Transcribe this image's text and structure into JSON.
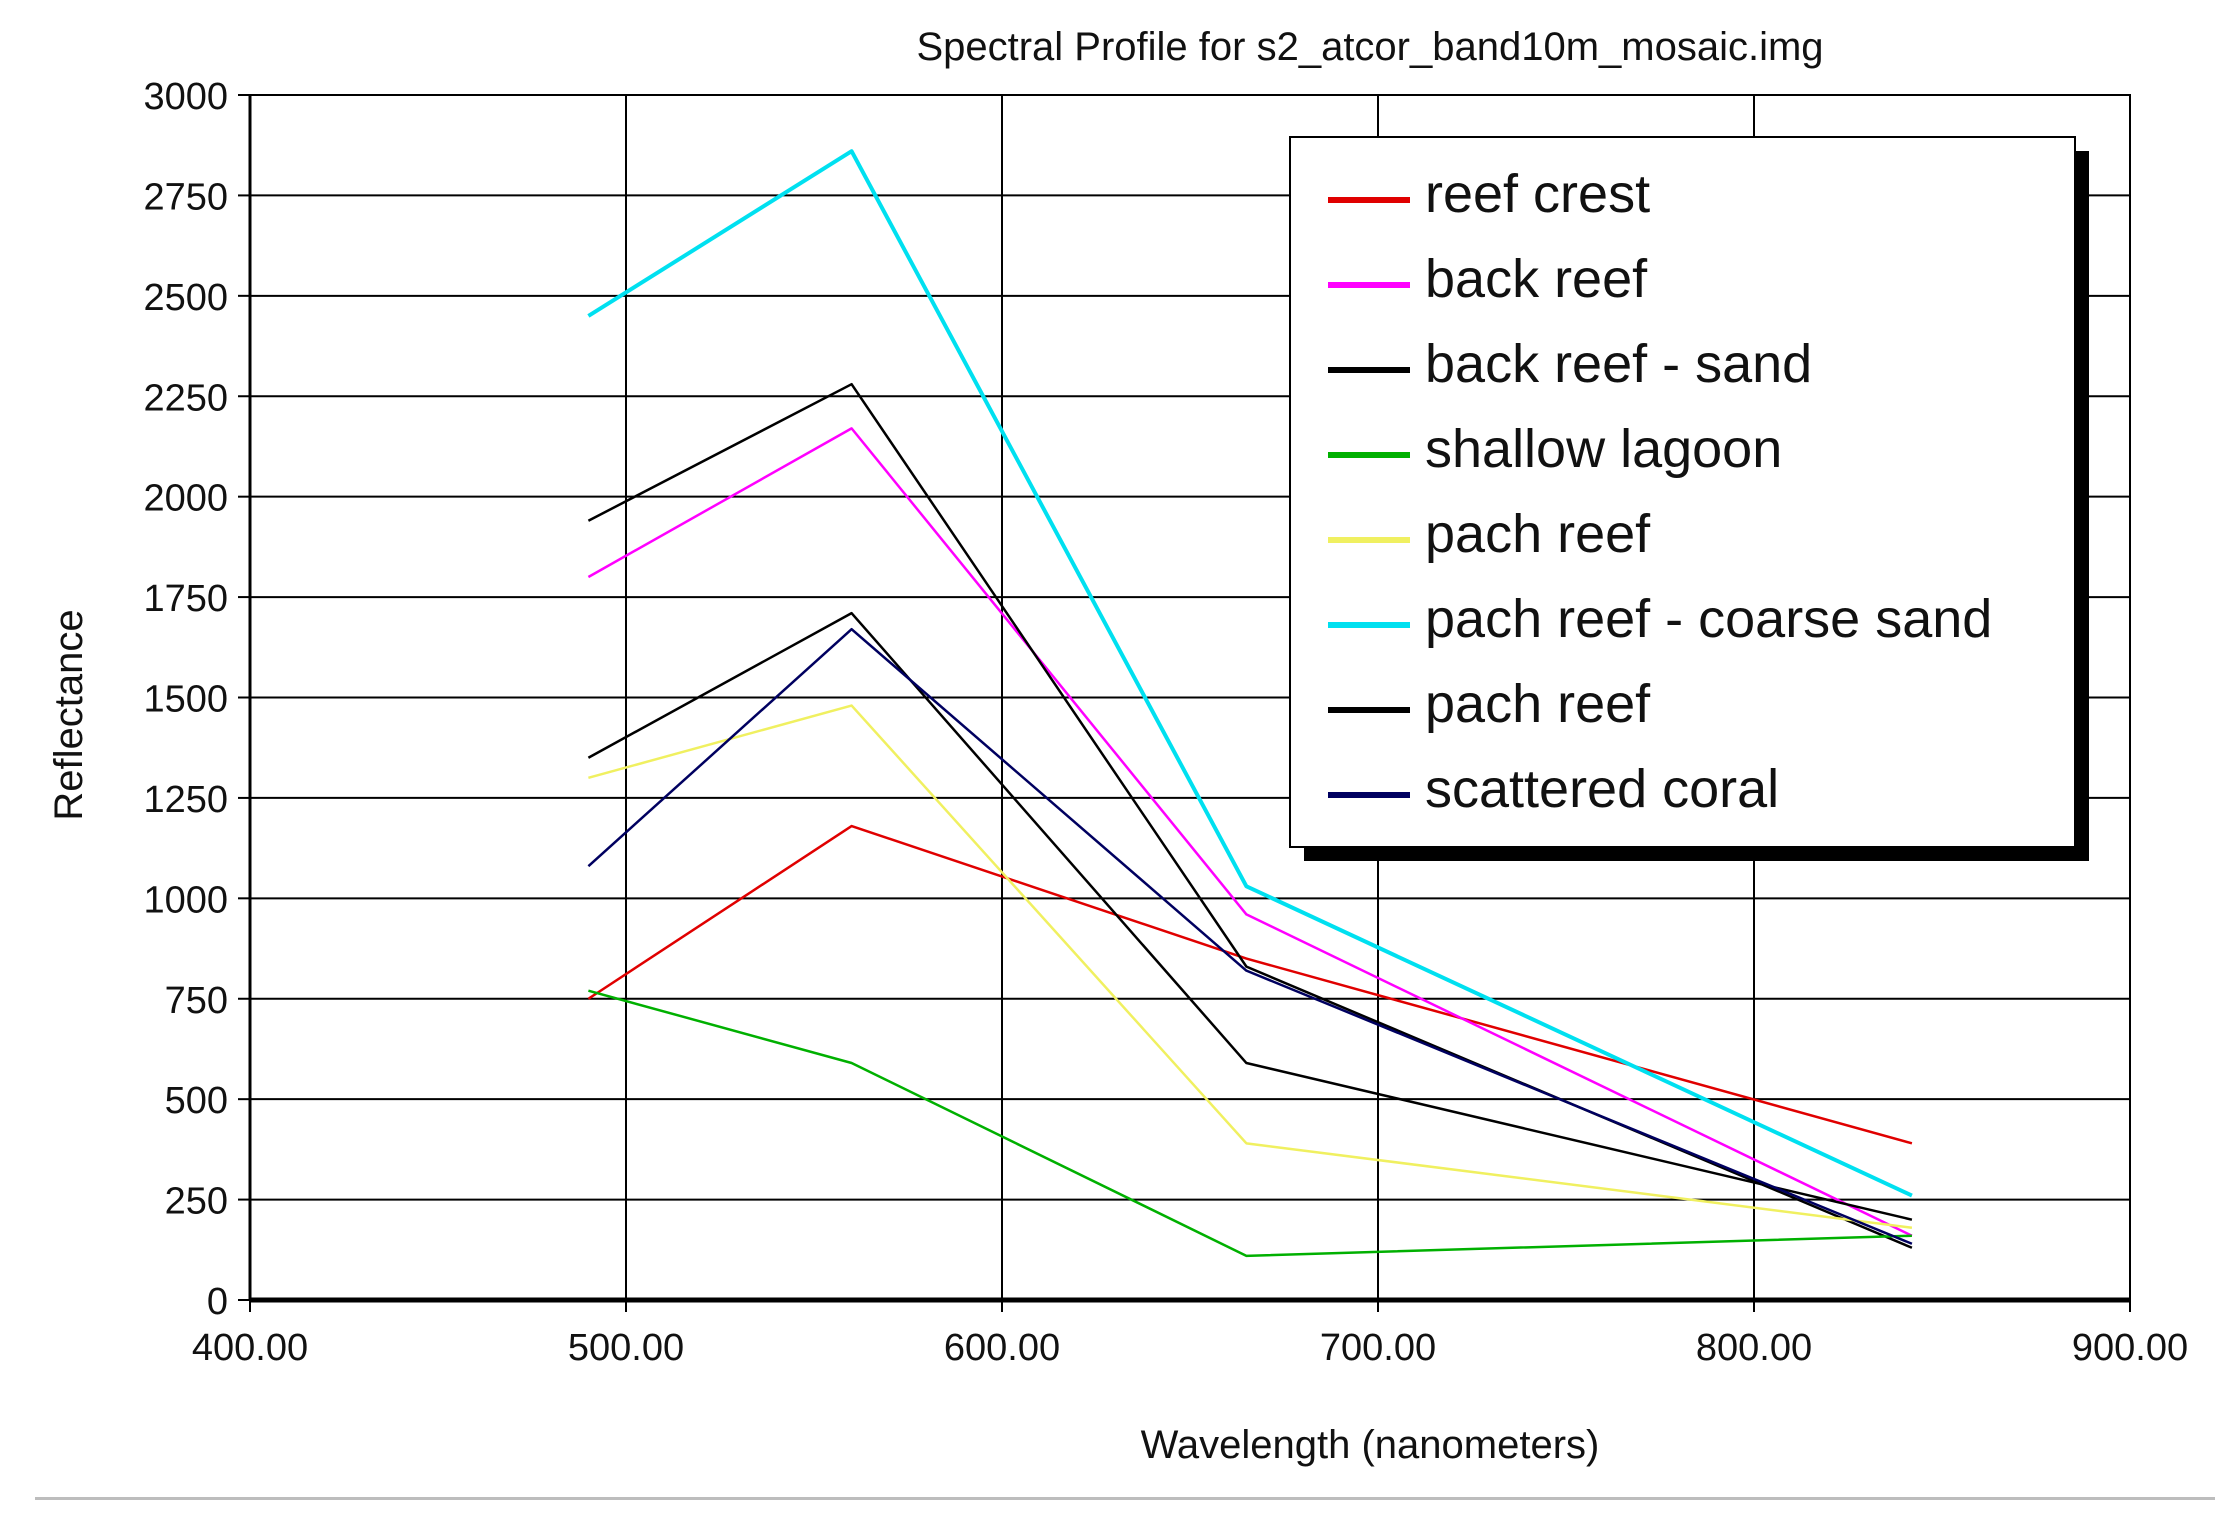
{
  "chart_data": {
    "type": "line",
    "title": "Spectral Profile for s2_atcor_band10m_mosaic.img",
    "xlabel": "Wavelength (nanometers)",
    "ylabel": "Reflectance",
    "xlim": [
      400,
      900
    ],
    "ylim": [
      0,
      3000
    ],
    "x_ticks": [
      "400.00",
      "500.00",
      "600.00",
      "700.00",
      "800.00",
      "900.00"
    ],
    "y_ticks": [
      "0",
      "250",
      "500",
      "750",
      "1000",
      "1250",
      "1500",
      "1750",
      "2000",
      "2250",
      "2500",
      "2750",
      "3000"
    ],
    "grid": true,
    "legend_position": "top-right",
    "x": [
      490,
      560,
      665,
      842
    ],
    "series": [
      {
        "name": "reef crest",
        "color": "#e00000",
        "values": [
          750,
          1180,
          850,
          390
        ]
      },
      {
        "name": "back reef",
        "color": "#ff00ff",
        "values": [
          1800,
          2170,
          960,
          160
        ]
      },
      {
        "name": "back reef - sand",
        "color": "#000000",
        "values": [
          1940,
          2280,
          830,
          130
        ]
      },
      {
        "name": "shallow lagoon",
        "color": "#00b000",
        "values": [
          770,
          590,
          110,
          160
        ]
      },
      {
        "name": "pach reef",
        "color": "#f0f060",
        "values": [
          1300,
          1480,
          390,
          180
        ]
      },
      {
        "name": "pach reef - coarse sand",
        "color": "#00e0f0",
        "values": [
          2450,
          2860,
          1030,
          260
        ]
      },
      {
        "name": "pach reef",
        "color": "#000000",
        "values": [
          1350,
          1710,
          590,
          200
        ]
      },
      {
        "name": "scattered coral",
        "color": "#000060",
        "values": [
          1080,
          1670,
          820,
          140
        ]
      }
    ]
  }
}
